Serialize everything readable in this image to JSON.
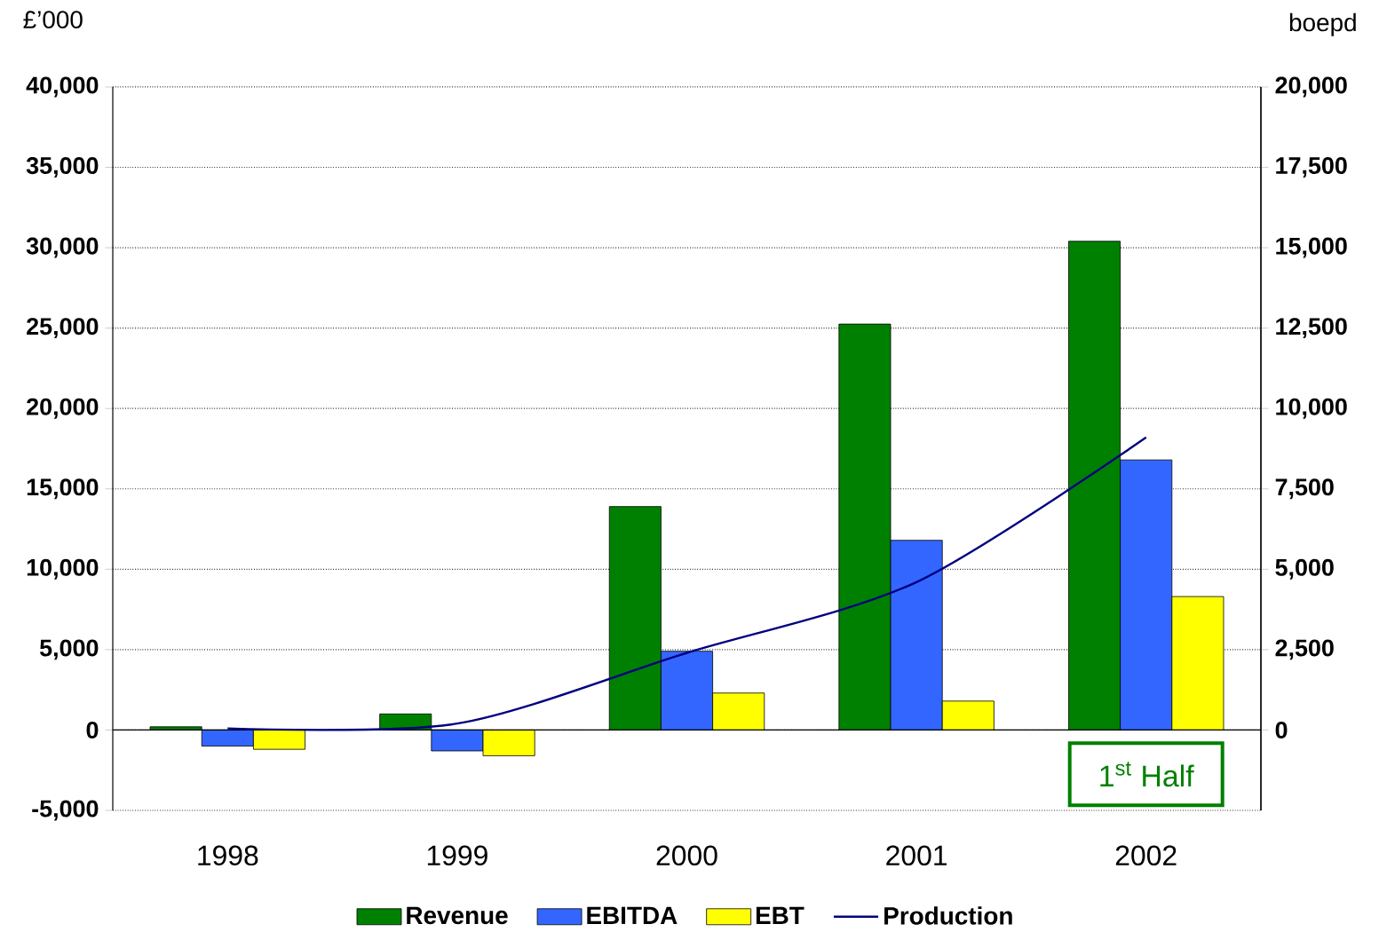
{
  "chart_data": {
    "type": "bar",
    "ylabel": "£’000",
    "y2label": "boepd",
    "categories": [
      "1998",
      "1999",
      "2000",
      "2001",
      "2002"
    ],
    "series": [
      {
        "name": "Revenue",
        "color": "#008000",
        "values": [
          200,
          1000,
          13900,
          25250,
          30400
        ]
      },
      {
        "name": "EBITDA",
        "color": "#3366ff",
        "values": [
          -1000,
          -1300,
          4900,
          11800,
          16800
        ]
      },
      {
        "name": "EBT",
        "color": "#ffff00",
        "values": [
          -1200,
          -1600,
          2300,
          1800,
          8300
        ]
      },
      {
        "name": "Production",
        "type": "line",
        "axis": "y2",
        "color": "#000080",
        "values": [
          50,
          200,
          2400,
          4600,
          9100
        ]
      }
    ],
    "ylim": [
      -5000,
      40000
    ],
    "yticks": [
      {
        "value": -5000,
        "label": "-5,000"
      },
      0,
      {
        "value": 5000,
        "label": "5,000"
      },
      {
        "value": 10000,
        "label": "10,000"
      },
      {
        "value": 15000,
        "label": "15,000"
      },
      {
        "value": 20000,
        "label": "20,000"
      },
      {
        "value": 25000,
        "label": "25,000"
      },
      {
        "value": 30000,
        "label": "30,000"
      },
      {
        "value": 35000,
        "label": "35,000"
      },
      {
        "value": 40000,
        "label": "40,000"
      }
    ],
    "y2lim": [
      -2500,
      20000
    ],
    "y2ticks": [
      0,
      {
        "value": 2500,
        "label": "2,500"
      },
      {
        "value": 5000,
        "label": "5,000"
      },
      {
        "value": 7500,
        "label": "7,500"
      },
      {
        "value": 10000,
        "label": "10,000"
      },
      {
        "value": 12500,
        "label": "12,500"
      },
      {
        "value": 15000,
        "label": "15,000"
      },
      {
        "value": 17500,
        "label": "17,500"
      },
      {
        "value": 20000,
        "label": "20,000"
      }
    ],
    "grid": "y",
    "legend": "bottom",
    "annotations": [
      "1$^{st}$ Half"
    ]
  }
}
